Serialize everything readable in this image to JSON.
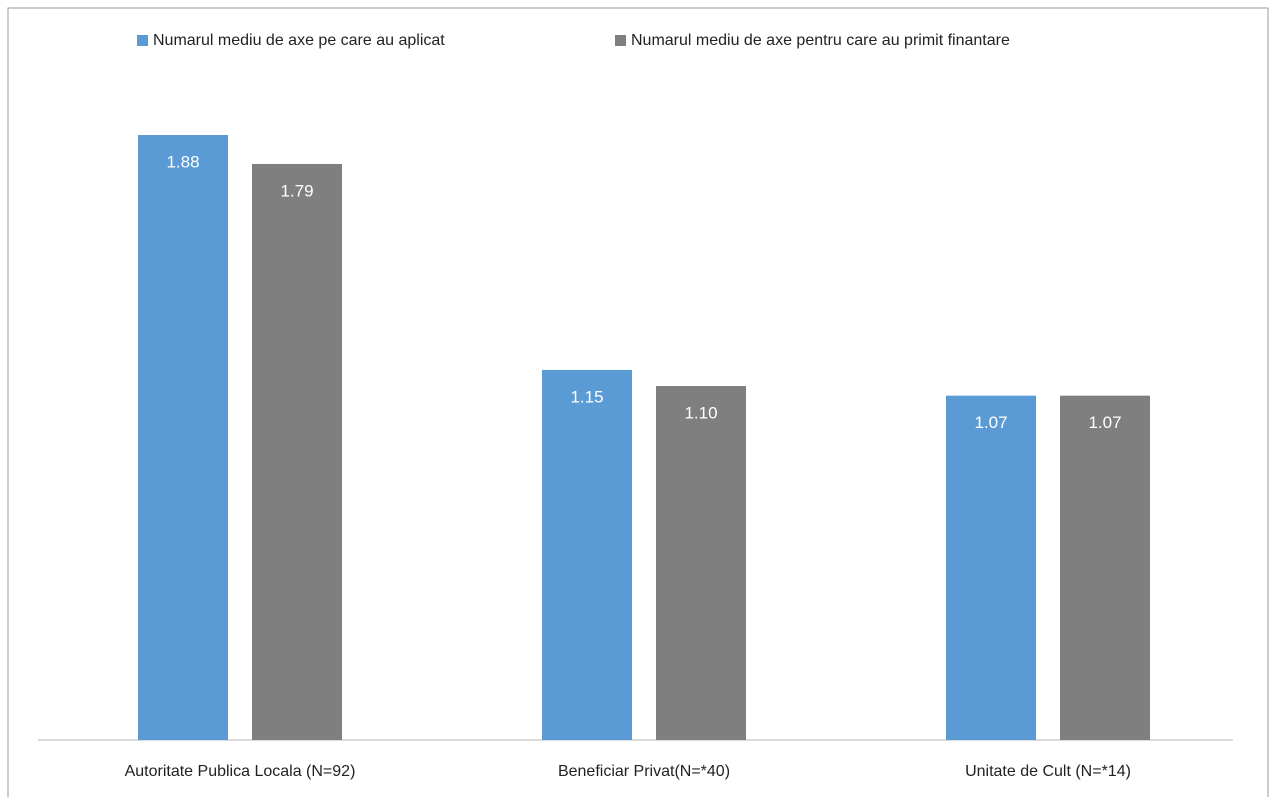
{
  "chart_data": {
    "type": "bar",
    "categories": [
      "Autoritate Publica Locala (N=92)",
      "Beneficiar Privat(N=*40)",
      "Unitate de Cult (N=*14)"
    ],
    "series": [
      {
        "name": "Numarul mediu de axe pe care au aplicat",
        "color": "#5b9bd5",
        "values": [
          1.88,
          1.15,
          1.07
        ],
        "value_labels": [
          "1.88",
          "1.15",
          "1.07"
        ]
      },
      {
        "name": "Numarul mediu de axe pentru care au primit finantare",
        "color": "#7f7f7f",
        "values": [
          1.79,
          1.1,
          1.07
        ],
        "value_labels": [
          "1.79",
          "1.10",
          "1.07"
        ]
      }
    ],
    "legend": "top"
  }
}
